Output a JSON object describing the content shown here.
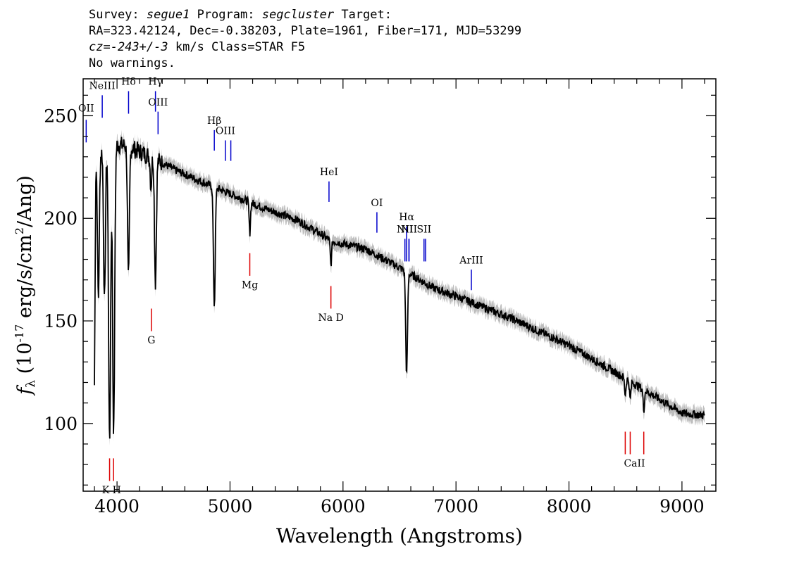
{
  "header": {
    "survey_label": "Survey:",
    "survey": "segue1",
    "program_label": "Program:",
    "program": "segcluster",
    "target_label": "Target:",
    "line2": "RA=323.42124, Dec=-0.38203, Plate=1961, Fiber=171, MJD=53299",
    "cz_label": "cz=",
    "cz_value": "-243+/-3",
    "cz_unit_class": "km/s Class=STAR F5",
    "warnings": "No warnings."
  },
  "chart_data": {
    "type": "line",
    "xlabel": "Wavelength (Angstroms)",
    "ylabel_symbol": "f",
    "ylabel_subscript": "λ",
    "ylabel_rest": " (10",
    "ylabel_exp": "-17",
    "ylabel_units_a": " erg/s/cm",
    "ylabel_units_exp": "2",
    "ylabel_units_b": "/Ang)",
    "xlim": [
      3700,
      9300
    ],
    "ylim": [
      67,
      268
    ],
    "xticks": [
      4000,
      5000,
      6000,
      7000,
      8000,
      9000
    ],
    "xtick_labels": [
      "4000",
      "5000",
      "6000",
      "7000",
      "8000",
      "9000"
    ],
    "yticks": [
      100,
      150,
      200,
      250
    ],
    "ytick_labels": [
      "100",
      "150",
      "200",
      "250"
    ],
    "series": [
      {
        "color": "#000000",
        "continuum": [
          [
            3800,
            230
          ],
          [
            3900,
            234
          ],
          [
            4000,
            236
          ],
          [
            4100,
            235
          ],
          [
            4300,
            230
          ],
          [
            4500,
            224
          ],
          [
            4700,
            219
          ],
          [
            5000,
            212
          ],
          [
            5300,
            205
          ],
          [
            5600,
            199
          ],
          [
            5900,
            189
          ],
          [
            6200,
            185
          ],
          [
            6500,
            176
          ],
          [
            6800,
            166
          ],
          [
            7000,
            162
          ],
          [
            7500,
            151
          ],
          [
            8000,
            138
          ],
          [
            8500,
            122
          ],
          [
            9000,
            105
          ],
          [
            9200,
            104
          ]
        ],
        "absorption_lines": [
          {
            "x": 3797,
            "depth": 55
          },
          {
            "x": 3835,
            "depth": 70
          },
          {
            "x": 3889,
            "depth": 75
          },
          {
            "x": 3934,
            "depth": 145
          },
          {
            "x": 3970,
            "depth": 140
          },
          {
            "x": 4101,
            "depth": 65
          },
          {
            "x": 4300,
            "depth": 15
          },
          {
            "x": 4340,
            "depth": 60
          },
          {
            "x": 4861,
            "depth": 58
          },
          {
            "x": 5175,
            "depth": 15
          },
          {
            "x": 5893,
            "depth": 12
          },
          {
            "x": 6563,
            "depth": 50
          },
          {
            "x": 8498,
            "depth": 8
          },
          {
            "x": 8542,
            "depth": 9
          },
          {
            "x": 8662,
            "depth": 10
          }
        ]
      }
    ],
    "emission_markers": [
      {
        "label": "OII",
        "x": 3727,
        "y_top": 248,
        "y_bot": 237,
        "label_y": 252
      },
      {
        "label": "NeIII",
        "x": 3869,
        "y_top": 260,
        "y_bot": 249,
        "label_y": 263
      },
      {
        "label": "Hδ",
        "x": 4102,
        "y_top": 262,
        "y_bot": 251,
        "label_y": 265
      },
      {
        "label": "Hγ",
        "x": 4340,
        "y_top": 262,
        "y_bot": 252,
        "label_y": 265
      },
      {
        "label": "OIII",
        "x": 4363,
        "y_top": 252,
        "y_bot": 241,
        "label_y": 255
      },
      {
        "label": "Hβ",
        "x": 4861,
        "y_top": 243,
        "y_bot": 233,
        "label_y": 246
      },
      {
        "label": "OIII",
        "x": 4959,
        "y_top": 238,
        "y_bot": 228,
        "label_y": 241
      },
      {
        "label": "",
        "x": 5007,
        "y_top": 238,
        "y_bot": 228,
        "label_y": 0
      },
      {
        "label": "HeI",
        "x": 5876,
        "y_top": 218,
        "y_bot": 208,
        "label_y": 221
      },
      {
        "label": "OI",
        "x": 6300,
        "y_top": 203,
        "y_bot": 193,
        "label_y": 206
      },
      {
        "label": "NII",
        "x": 6548,
        "y_top": 190,
        "y_bot": 179,
        "label_y": 193
      },
      {
        "label": "Hα",
        "x": 6563,
        "y_top": 196,
        "y_bot": 179,
        "label_y": 199
      },
      {
        "label": "",
        "x": 6584,
        "y_top": 190,
        "y_bot": 179,
        "label_y": 0
      },
      {
        "label": "NII",
        "x": 6584,
        "y_top": 190,
        "y_bot": 179,
        "label_y": 193
      },
      {
        "label": "SII",
        "x": 6717,
        "y_top": 190,
        "y_bot": 179,
        "label_y": 193
      },
      {
        "label": "",
        "x": 6731,
        "y_top": 190,
        "y_bot": 179,
        "label_y": 0
      },
      {
        "label": "ArIII",
        "x": 7136,
        "y_top": 175,
        "y_bot": 165,
        "label_y": 178
      }
    ],
    "absorption_markers": [
      {
        "label": "K H",
        "xs": [
          3934,
          3969
        ],
        "y_top": 83,
        "y_bot": 72,
        "label_y": 66
      },
      {
        "label": "G",
        "xs": [
          4304
        ],
        "y_top": 156,
        "y_bot": 145,
        "label_y": 139
      },
      {
        "label": "Mg",
        "xs": [
          5175
        ],
        "y_top": 183,
        "y_bot": 172,
        "label_y": 166
      },
      {
        "label": "Na  D",
        "xs": [
          5893
        ],
        "y_top": 167,
        "y_bot": 156,
        "label_y": 150
      },
      {
        "label": "CaII",
        "xs": [
          8498,
          8542,
          8662
        ],
        "y_top": 96,
        "y_bot": 85,
        "label_y": 79
      }
    ],
    "colors": {
      "spectrum": "#000000",
      "error_band": "#bdbdbd",
      "emission": "#0000cc",
      "absorption": "#dd0000"
    }
  }
}
